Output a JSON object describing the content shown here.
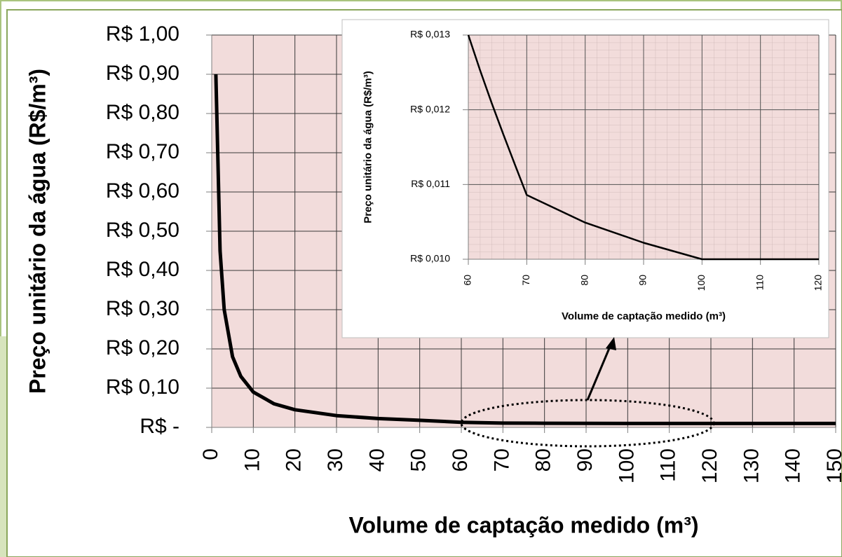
{
  "chart_data": [
    {
      "type": "line",
      "x_label": "Volume de captação medido (m³)",
      "y_label": "Preço unitário da água (R$/m³)",
      "x": [
        1,
        2,
        3,
        5,
        7,
        10,
        15,
        20,
        30,
        40,
        50,
        60,
        70,
        80,
        90,
        100,
        110,
        120,
        130,
        140,
        150
      ],
      "values": [
        0.9,
        0.45,
        0.3,
        0.18,
        0.13,
        0.09,
        0.06,
        0.045,
        0.03,
        0.0225,
        0.018,
        0.013,
        0.0109,
        0.0105,
        0.0102,
        0.01,
        0.01,
        0.01,
        0.01,
        0.01,
        0.01
      ],
      "color": "#000000",
      "xlim": [
        0,
        150
      ],
      "xticks": [
        0,
        10,
        20,
        30,
        40,
        50,
        60,
        70,
        80,
        90,
        100,
        110,
        120,
        130,
        140,
        150
      ],
      "ylim": [
        0,
        1
      ],
      "yticks": [
        {
          "value": 0,
          "label": "R$ -"
        },
        {
          "value": 0.1,
          "label": "R$ 0,10"
        },
        {
          "value": 0.2,
          "label": "R$ 0,20"
        },
        {
          "value": 0.3,
          "label": "R$ 0,30"
        },
        {
          "value": 0.4,
          "label": "R$ 0,40"
        },
        {
          "value": 0.5,
          "label": "R$ 0,50"
        },
        {
          "value": 0.6,
          "label": "R$ 0,60"
        },
        {
          "value": 0.7,
          "label": "R$ 0,70"
        },
        {
          "value": 0.8,
          "label": "R$ 0,80"
        },
        {
          "value": 0.9,
          "label": "R$ 0,90"
        },
        {
          "value": 1,
          "label": "R$ 1,00"
        }
      ],
      "grid": true
    },
    {
      "type": "line",
      "x_label": "Volume de captação medido (m³)",
      "y_label": "Preço unitário da água (R$/m³)",
      "x": [
        60,
        62,
        64,
        66,
        68,
        70,
        80,
        90,
        100,
        110,
        120
      ],
      "values": [
        0.013,
        0.01253,
        0.01209,
        0.01167,
        0.01126,
        0.01086,
        0.01049,
        0.01022,
        0.01,
        0.01,
        0.01
      ],
      "color": "#000000",
      "xlim": [
        60,
        120
      ],
      "xticks": [
        60,
        70,
        80,
        90,
        100,
        110,
        120
      ],
      "ylim": [
        0.01,
        0.013
      ],
      "yticks": [
        {
          "value": 0.01,
          "label": "R$ 0,010"
        },
        {
          "value": 0.011,
          "label": "R$ 0,011"
        },
        {
          "value": 0.012,
          "label": "R$ 0,012"
        },
        {
          "value": 0.013,
          "label": "R$ 0,013"
        }
      ],
      "grid": true
    }
  ]
}
